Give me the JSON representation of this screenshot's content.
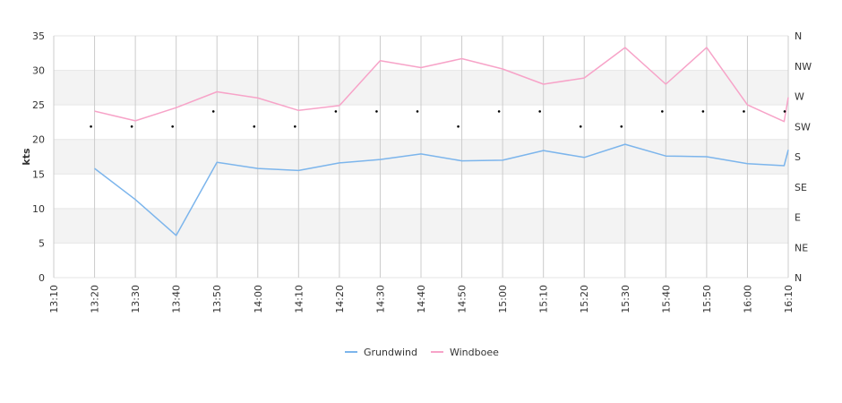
{
  "chart_data": {
    "type": "line",
    "title": "",
    "xlabel": "",
    "ylabel": "kts",
    "ylim": [
      0,
      35
    ],
    "y_ticks": [
      "0",
      "5",
      "10",
      "15",
      "20",
      "25",
      "30",
      "35"
    ],
    "x_ticks": [
      "13:10",
      "13:20",
      "13:30",
      "13:40",
      "13:50",
      "14:00",
      "14:10",
      "14:20",
      "14:30",
      "14:40",
      "14:50",
      "15:00",
      "15:10",
      "15:20",
      "15:30",
      "15:40",
      "15:50",
      "16:00",
      "16:10"
    ],
    "right_axis_labels": [
      "N",
      "NE",
      "E",
      "SE",
      "S",
      "SW",
      "W",
      "NW",
      "N"
    ],
    "grid": true,
    "legend_position": "bottom-center",
    "series": [
      {
        "name": "Grundwind",
        "color": "#7cb5ec",
        "x": [
          "13:20",
          "13:30",
          "13:40",
          "13:50",
          "14:00",
          "14:10",
          "14:20",
          "14:30",
          "14:40",
          "14:50",
          "15:00",
          "15:10",
          "15:20",
          "15:30",
          "15:40",
          "15:50",
          "16:00",
          "16:09",
          "16:10"
        ],
        "values": [
          15.8,
          11.3,
          6.1,
          16.7,
          15.8,
          15.5,
          16.6,
          17.1,
          17.9,
          16.9,
          17.0,
          18.4,
          17.4,
          19.3,
          17.6,
          17.5,
          16.5,
          16.2,
          18.5
        ]
      },
      {
        "name": "Windboee",
        "color": "#f7a3c8",
        "x": [
          "13:20",
          "13:30",
          "13:40",
          "13:50",
          "14:00",
          "14:10",
          "14:20",
          "14:30",
          "14:40",
          "14:50",
          "15:00",
          "15:10",
          "15:20",
          "15:30",
          "15:40",
          "15:50",
          "16:00",
          "16:09",
          "16:10"
        ],
        "values": [
          24.1,
          22.7,
          24.6,
          26.9,
          26.0,
          24.2,
          24.9,
          31.4,
          30.4,
          31.7,
          30.2,
          28.0,
          28.9,
          33.3,
          28.0,
          33.3,
          25.0,
          22.6,
          26.1
        ]
      }
    ],
    "wind_direction": {
      "x": [
        "13:20",
        "13:30",
        "13:40",
        "13:50",
        "14:00",
        "14:10",
        "14:20",
        "14:30",
        "14:40",
        "14:50",
        "15:00",
        "15:10",
        "15:20",
        "15:30",
        "15:40",
        "15:50",
        "16:00",
        "16:10"
      ],
      "directions": [
        "SW",
        "SW",
        "SW",
        "WSW",
        "SW",
        "SW",
        "WSW",
        "WSW",
        "WSW",
        "SW",
        "WSW",
        "WSW",
        "SW",
        "SW",
        "WSW",
        "WSW",
        "WSW",
        "WSW"
      ]
    }
  }
}
